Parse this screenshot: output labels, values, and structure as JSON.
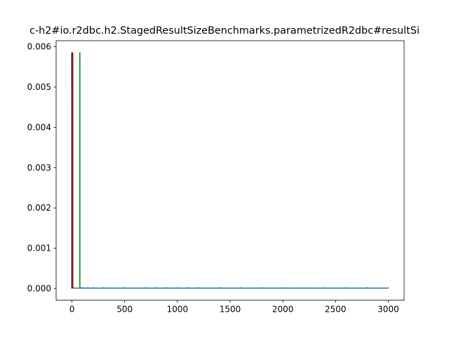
{
  "chart_data": {
    "type": "line",
    "title": "c-h2#io.r2dbc.h2.StagedResultSizeBenchmarks.parametrizedR2dbc#resultSi",
    "xlabel": "",
    "ylabel": "",
    "xlim": [
      -150,
      3150
    ],
    "ylim": [
      -0.00029,
      0.00615
    ],
    "x_ticks": [
      0,
      500,
      1000,
      1500,
      2000,
      2500,
      3000
    ],
    "x_tick_labels": [
      "0",
      "500",
      "1000",
      "1500",
      "2000",
      "2500",
      "3000"
    ],
    "y_ticks": [
      0.0,
      0.001,
      0.002,
      0.003,
      0.004,
      0.005,
      0.006
    ],
    "y_tick_labels": [
      "0.000",
      "0.001",
      "0.002",
      "0.003",
      "0.004",
      "0.005",
      "0.006"
    ],
    "grid": false,
    "vlines": [
      {
        "x": 0,
        "ymin": 0,
        "ymax": 0.00586,
        "color": "#000000"
      },
      {
        "x": 9,
        "ymin": 0,
        "ymax": 0.00586,
        "color": "#d62728"
      },
      {
        "x": 75,
        "ymin": 0,
        "ymax": 0.00586,
        "color": "#008000"
      }
    ],
    "series": [
      {
        "color": "#1f77b4",
        "x": [
          0,
          3,
          6,
          10,
          20,
          40,
          80,
          100,
          150,
          200,
          300,
          500,
          700,
          800,
          900,
          1000,
          1100,
          1200,
          1400,
          1600,
          1800,
          2000,
          2200,
          2400,
          2600,
          2800,
          3000
        ],
        "values": [
          0.00586,
          0.0008,
          0.00012,
          2e-05,
          1.2e-05,
          1e-05,
          1e-05,
          1e-05,
          1e-05,
          1e-05,
          1e-05,
          1e-05,
          1e-05,
          1e-05,
          1e-05,
          1e-05,
          1e-05,
          1e-05,
          1e-05,
          1e-05,
          1e-05,
          1e-05,
          1e-05,
          1e-05,
          1e-05,
          1e-05,
          1e-05
        ]
      }
    ]
  }
}
